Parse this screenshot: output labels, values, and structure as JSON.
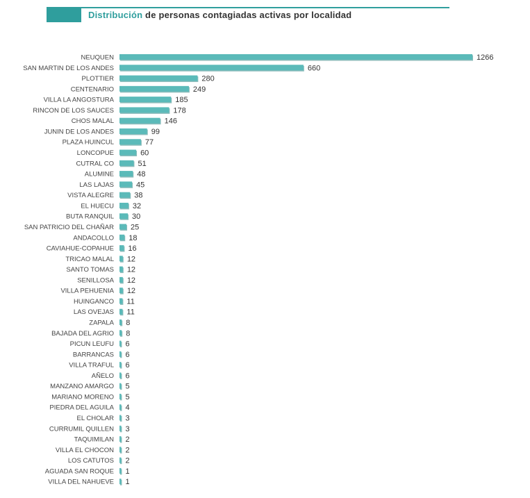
{
  "header": {
    "title_highlight": "Distribución",
    "title_rest": " de personas contagiadas activas por localidad"
  },
  "colors": {
    "bar": "#5bbab9",
    "bar_shadow": "#2e8584",
    "accent": "#2f9e9d"
  },
  "chart_data": {
    "type": "bar",
    "orientation": "horizontal",
    "title": "Distribución de personas contagiadas activas por localidad",
    "xlabel": "",
    "ylabel": "",
    "xlim": [
      0,
      1266
    ],
    "grid": false,
    "categories": [
      "NEUQUEN",
      "SAN MARTIN DE LOS ANDES",
      "PLOTTIER",
      "CENTENARIO",
      "VILLA LA ANGOSTURA",
      "RINCON DE LOS SAUCES",
      "CHOS MALAL",
      "JUNIN DE LOS ANDES",
      "PLAZA HUINCUL",
      "LONCOPUE",
      "CUTRAL CO",
      "ALUMINE",
      "LAS LAJAS",
      "VISTA ALEGRE",
      "EL HUECU",
      "BUTA RANQUIL",
      "SAN PATRICIO DEL CHAÑAR",
      "ANDACOLLO",
      "CAVIAHUE-COPAHUE",
      "TRICAO MALAL",
      "SANTO TOMAS",
      "SENILLOSA",
      "VILLA PEHUENIA",
      "HUINGANCO",
      "LAS OVEJAS",
      "ZAPALA",
      "BAJADA DEL AGRIO",
      "PICUN LEUFU",
      "BARRANCAS",
      "VILLA TRAFUL",
      "AÑELO",
      "MANZANO AMARGO",
      "MARIANO MORENO",
      "PIEDRA DEL AGUILA",
      "EL CHOLAR",
      "CURRUMIL QUILLEN",
      "TAQUIMILAN",
      "VILLA EL CHOCON",
      "LOS CATUTOS",
      "AGUADA SAN ROQUE",
      "VILLA DEL NAHUEVE"
    ],
    "values": [
      1266,
      660,
      280,
      249,
      185,
      178,
      146,
      99,
      77,
      60,
      51,
      48,
      45,
      38,
      32,
      30,
      25,
      18,
      16,
      12,
      12,
      12,
      12,
      11,
      11,
      8,
      8,
      6,
      6,
      6,
      6,
      5,
      5,
      4,
      3,
      3,
      2,
      2,
      2,
      1,
      1
    ]
  }
}
